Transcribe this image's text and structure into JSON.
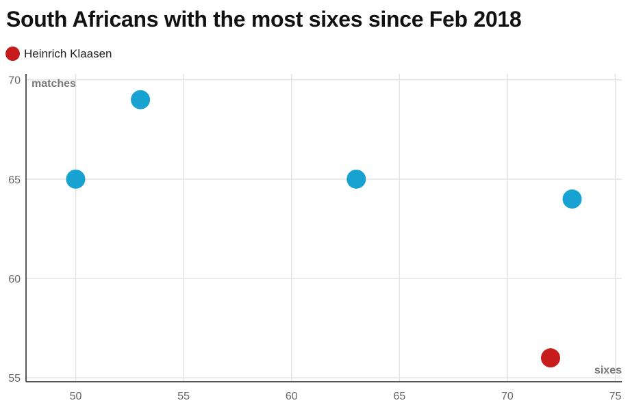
{
  "chart_data": {
    "type": "scatter",
    "title": "South Africans with the most sixes since Feb 2018",
    "xlabel": "sixes",
    "ylabel": "matches",
    "xlim": [
      47.7,
      75.3
    ],
    "ylim": [
      54.8,
      70.3
    ],
    "x_ticks": [
      50,
      55,
      60,
      65,
      70,
      75
    ],
    "y_ticks": [
      55,
      60,
      65,
      70
    ],
    "grid": true,
    "legend_position": "top-left",
    "points": [
      {
        "x": 50,
        "y": 65,
        "color": "#17a2d2"
      },
      {
        "x": 53,
        "y": 69,
        "color": "#17a2d2"
      },
      {
        "x": 63,
        "y": 65,
        "color": "#17a2d2"
      },
      {
        "x": 73,
        "y": 64,
        "color": "#17a2d2"
      },
      {
        "x": 72,
        "y": 56,
        "color": "#c71c1c"
      }
    ],
    "legend": [
      {
        "label": "Heinrich Klaasen",
        "color": "#c71c1c"
      }
    ]
  }
}
